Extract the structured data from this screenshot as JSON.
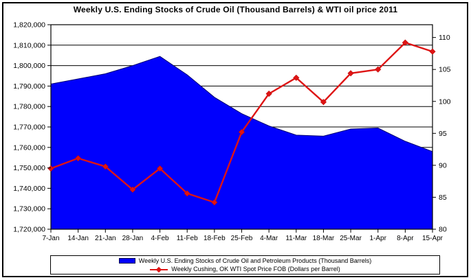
{
  "title": "Weekly U.S. Ending Stocks of Crude Oil  (Thousand Barrels) & WTI oil price 2011",
  "colors": {
    "stocks_fill": "#0000FD",
    "stocks_edge": "#000070",
    "wti_line": "#DE1414",
    "grid": "#000000",
    "background": "#FFFFFF"
  },
  "chart_data": {
    "type": "area",
    "title": "Weekly U.S. Ending Stocks of Crude Oil  (Thousand Barrels) & WTI oil price 2011",
    "categories": [
      "7-Jan",
      "14-Jan",
      "21-Jan",
      "28-Jan",
      "4-Feb",
      "11-Feb",
      "18-Feb",
      "25-Feb",
      "4-Mar",
      "11-Mar",
      "18-Mar",
      "25-Mar",
      "1-Apr",
      "8-Apr",
      "15-Apr"
    ],
    "series": [
      {
        "name": "Weekly U.S. Ending Stocks of Crude Oil and Petroleum Products  (Thousand Barrels)",
        "type": "area",
        "axis": "left",
        "color": "#0000FD",
        "values": [
          1791000,
          1793500,
          1796000,
          1800000,
          1804500,
          1795500,
          1784500,
          1776500,
          1770500,
          1766000,
          1765500,
          1769000,
          1769500,
          1763000,
          1758000
        ]
      },
      {
        "name": "Weekly Cushing, OK WTI Spot Price FOB  (Dollars per Barrel)",
        "type": "line",
        "axis": "right",
        "color": "#DE1414",
        "marker": "diamond",
        "values": [
          89.5,
          91.1,
          89.8,
          86.2,
          89.5,
          85.6,
          84.2,
          95.2,
          101.2,
          103.7,
          99.9,
          104.4,
          105.0,
          109.2,
          107.8
        ]
      }
    ],
    "left_axis": {
      "min": 1720000,
      "max": 1820000,
      "step": 10000,
      "tick_labels": [
        "1,820,000",
        "1,810,000",
        "1,800,000",
        "1,790,000",
        "1,780,000",
        "1,770,000",
        "1,760,000",
        "1,750,000",
        "1,740,000",
        "1,730,000",
        "1,720,000"
      ]
    },
    "right_axis": {
      "min": 80,
      "max": 112,
      "tick_values": [
        110,
        105,
        100,
        95,
        90,
        85,
        80
      ],
      "tick_labels": [
        "110",
        "105",
        "100",
        "95",
        "90",
        "85",
        "80"
      ]
    },
    "grid": true,
    "legend_position": "bottom"
  }
}
